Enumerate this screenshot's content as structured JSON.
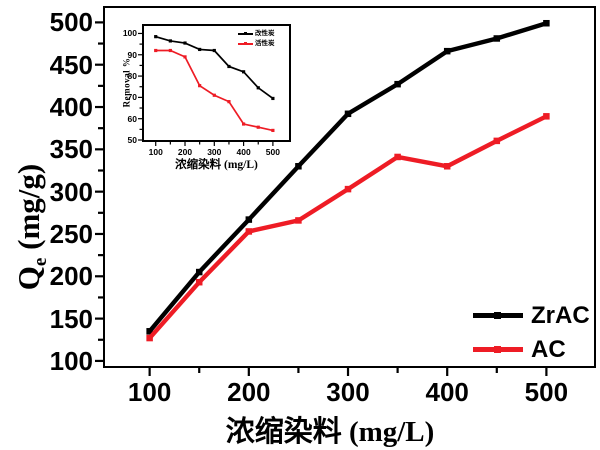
{
  "figure": {
    "background": "#ffffff",
    "frame_color": "#000000",
    "y_axis_label": {
      "base": "Q",
      "sub": "e",
      "unit": " (mg/g)"
    },
    "x_axis_label": "浓缩染料 (mg/L)"
  },
  "chart_data": [
    {
      "id": "main",
      "type": "line",
      "title": "",
      "xlabel": "浓缩染料 (mg/L)",
      "ylabel": "Qe (mg/g)",
      "x": [
        100,
        150,
        200,
        250,
        300,
        350,
        400,
        450,
        500
      ],
      "series": [
        {
          "name": "ZrAC",
          "color": "#000000",
          "marker": "square",
          "values": [
            135,
            205,
            267,
            330,
            392,
            427,
            466,
            481,
            499
          ]
        },
        {
          "name": "AC",
          "color": "#ee1c25",
          "marker": "square",
          "values": [
            127,
            193,
            253,
            266,
            303,
            341,
            330,
            360,
            389
          ]
        }
      ],
      "xlim": [
        55,
        548
      ],
      "ylim": [
        94,
        517
      ],
      "x_ticks": [
        100,
        200,
        300,
        400,
        500
      ],
      "x_minor_ticks": [
        150,
        250,
        350,
        450
      ],
      "y_ticks": [
        100,
        150,
        200,
        250,
        300,
        350,
        400,
        450,
        500
      ],
      "y_minor_ticks": [
        125,
        175,
        225,
        275,
        325,
        375,
        425,
        475
      ],
      "grid": false,
      "legend_position": "bottom-right"
    },
    {
      "id": "inset",
      "type": "line",
      "title": "",
      "xlabel": "浓缩染料 (mg/L)",
      "ylabel": "Removal %",
      "x": [
        100,
        150,
        200,
        250,
        300,
        350,
        400,
        450,
        500
      ],
      "series": [
        {
          "name": "改性炭",
          "color": "#000000",
          "marker": "square",
          "values": [
            98.5,
            96.5,
            95.5,
            92.5,
            92,
            84.5,
            82,
            74.5,
            69.5
          ]
        },
        {
          "name": "活性炭",
          "color": "#ee1c25",
          "marker": "square",
          "values": [
            92,
            92,
            89,
            75.5,
            71,
            68,
            57.5,
            56,
            54.5
          ]
        }
      ],
      "xlim": [
        60,
        555
      ],
      "ylim": [
        50,
        103.5
      ],
      "x_ticks": [
        100,
        200,
        300,
        400,
        500
      ],
      "x_minor_ticks": [
        150,
        250,
        350,
        450
      ],
      "y_ticks": [
        50,
        60,
        70,
        80,
        90,
        100
      ],
      "y_minor_ticks": [
        55,
        65,
        75,
        85,
        95
      ],
      "grid": false,
      "legend_position": "top-right"
    }
  ]
}
